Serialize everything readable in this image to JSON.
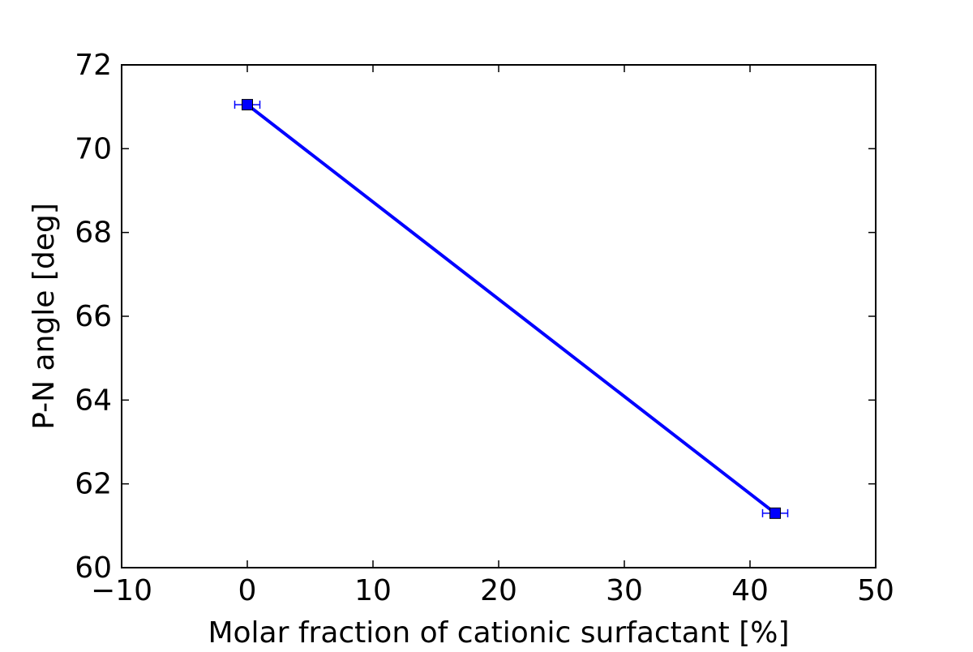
{
  "chart_data": {
    "type": "line",
    "title": "",
    "xlabel": "Molar fraction of cationic surfactant [%]",
    "ylabel": "P-N angle [deg]",
    "xlim": [
      -10,
      50
    ],
    "ylim": [
      60,
      72
    ],
    "x_ticks": [
      -10,
      0,
      10,
      20,
      30,
      40,
      50
    ],
    "x_tick_labels": [
      "−10",
      "0",
      "10",
      "20",
      "30",
      "40",
      "50"
    ],
    "y_ticks": [
      60,
      62,
      64,
      66,
      68,
      70,
      72
    ],
    "y_tick_labels": [
      "60",
      "62",
      "64",
      "66",
      "68",
      "70",
      "72"
    ],
    "grid": false,
    "legend": "none",
    "series": [
      {
        "color": "#0000ff",
        "marker": "square",
        "x": [
          0,
          42
        ],
        "y": [
          71.05,
          61.3
        ],
        "x_err": [
          1.0,
          1.0
        ],
        "y_err": [
          0.05,
          0.05
        ]
      }
    ]
  }
}
